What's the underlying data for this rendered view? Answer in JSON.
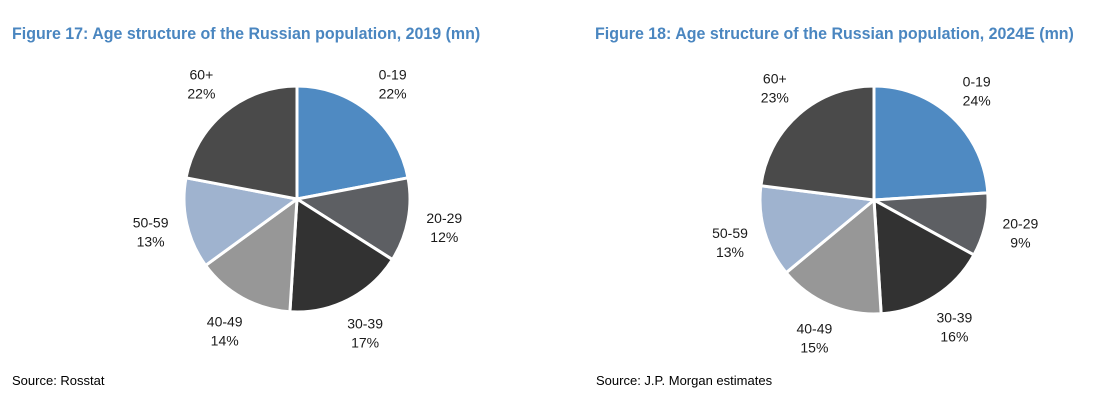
{
  "chart_data": [
    {
      "type": "pie",
      "title": "Figure 17: Age structure of the Russian population, 2019 (mn)",
      "source": "Source: Rosstat",
      "categories": [
        "0-19",
        "20-29",
        "30-39",
        "40-49",
        "50-59",
        "60+"
      ],
      "values": [
        22,
        12,
        17,
        14,
        13,
        22
      ],
      "labels": [
        "22%",
        "12%",
        "17%",
        "14%",
        "13%",
        "22%"
      ],
      "colors": [
        "#4f8ac2",
        "#5d5f63",
        "#323232",
        "#979797",
        "#9fb3cf",
        "#4a4a4a"
      ],
      "start": "12 o'clock",
      "direction": "clockwise"
    },
    {
      "type": "pie",
      "title": "Figure 18: Age structure of the Russian population, 2024E (mn)",
      "source": "Source: J.P. Morgan estimates",
      "categories": [
        "0-19",
        "20-29",
        "30-39",
        "40-49",
        "50-59",
        "60+"
      ],
      "values": [
        24,
        9,
        16,
        15,
        13,
        23
      ],
      "labels": [
        "24%",
        "9%",
        "16%",
        "15%",
        "13%",
        "23%"
      ],
      "colors": [
        "#4f8ac2",
        "#5d5f63",
        "#323232",
        "#979797",
        "#9fb3cf",
        "#4a4a4a"
      ],
      "start": "12 o'clock",
      "direction": "clockwise"
    }
  ]
}
